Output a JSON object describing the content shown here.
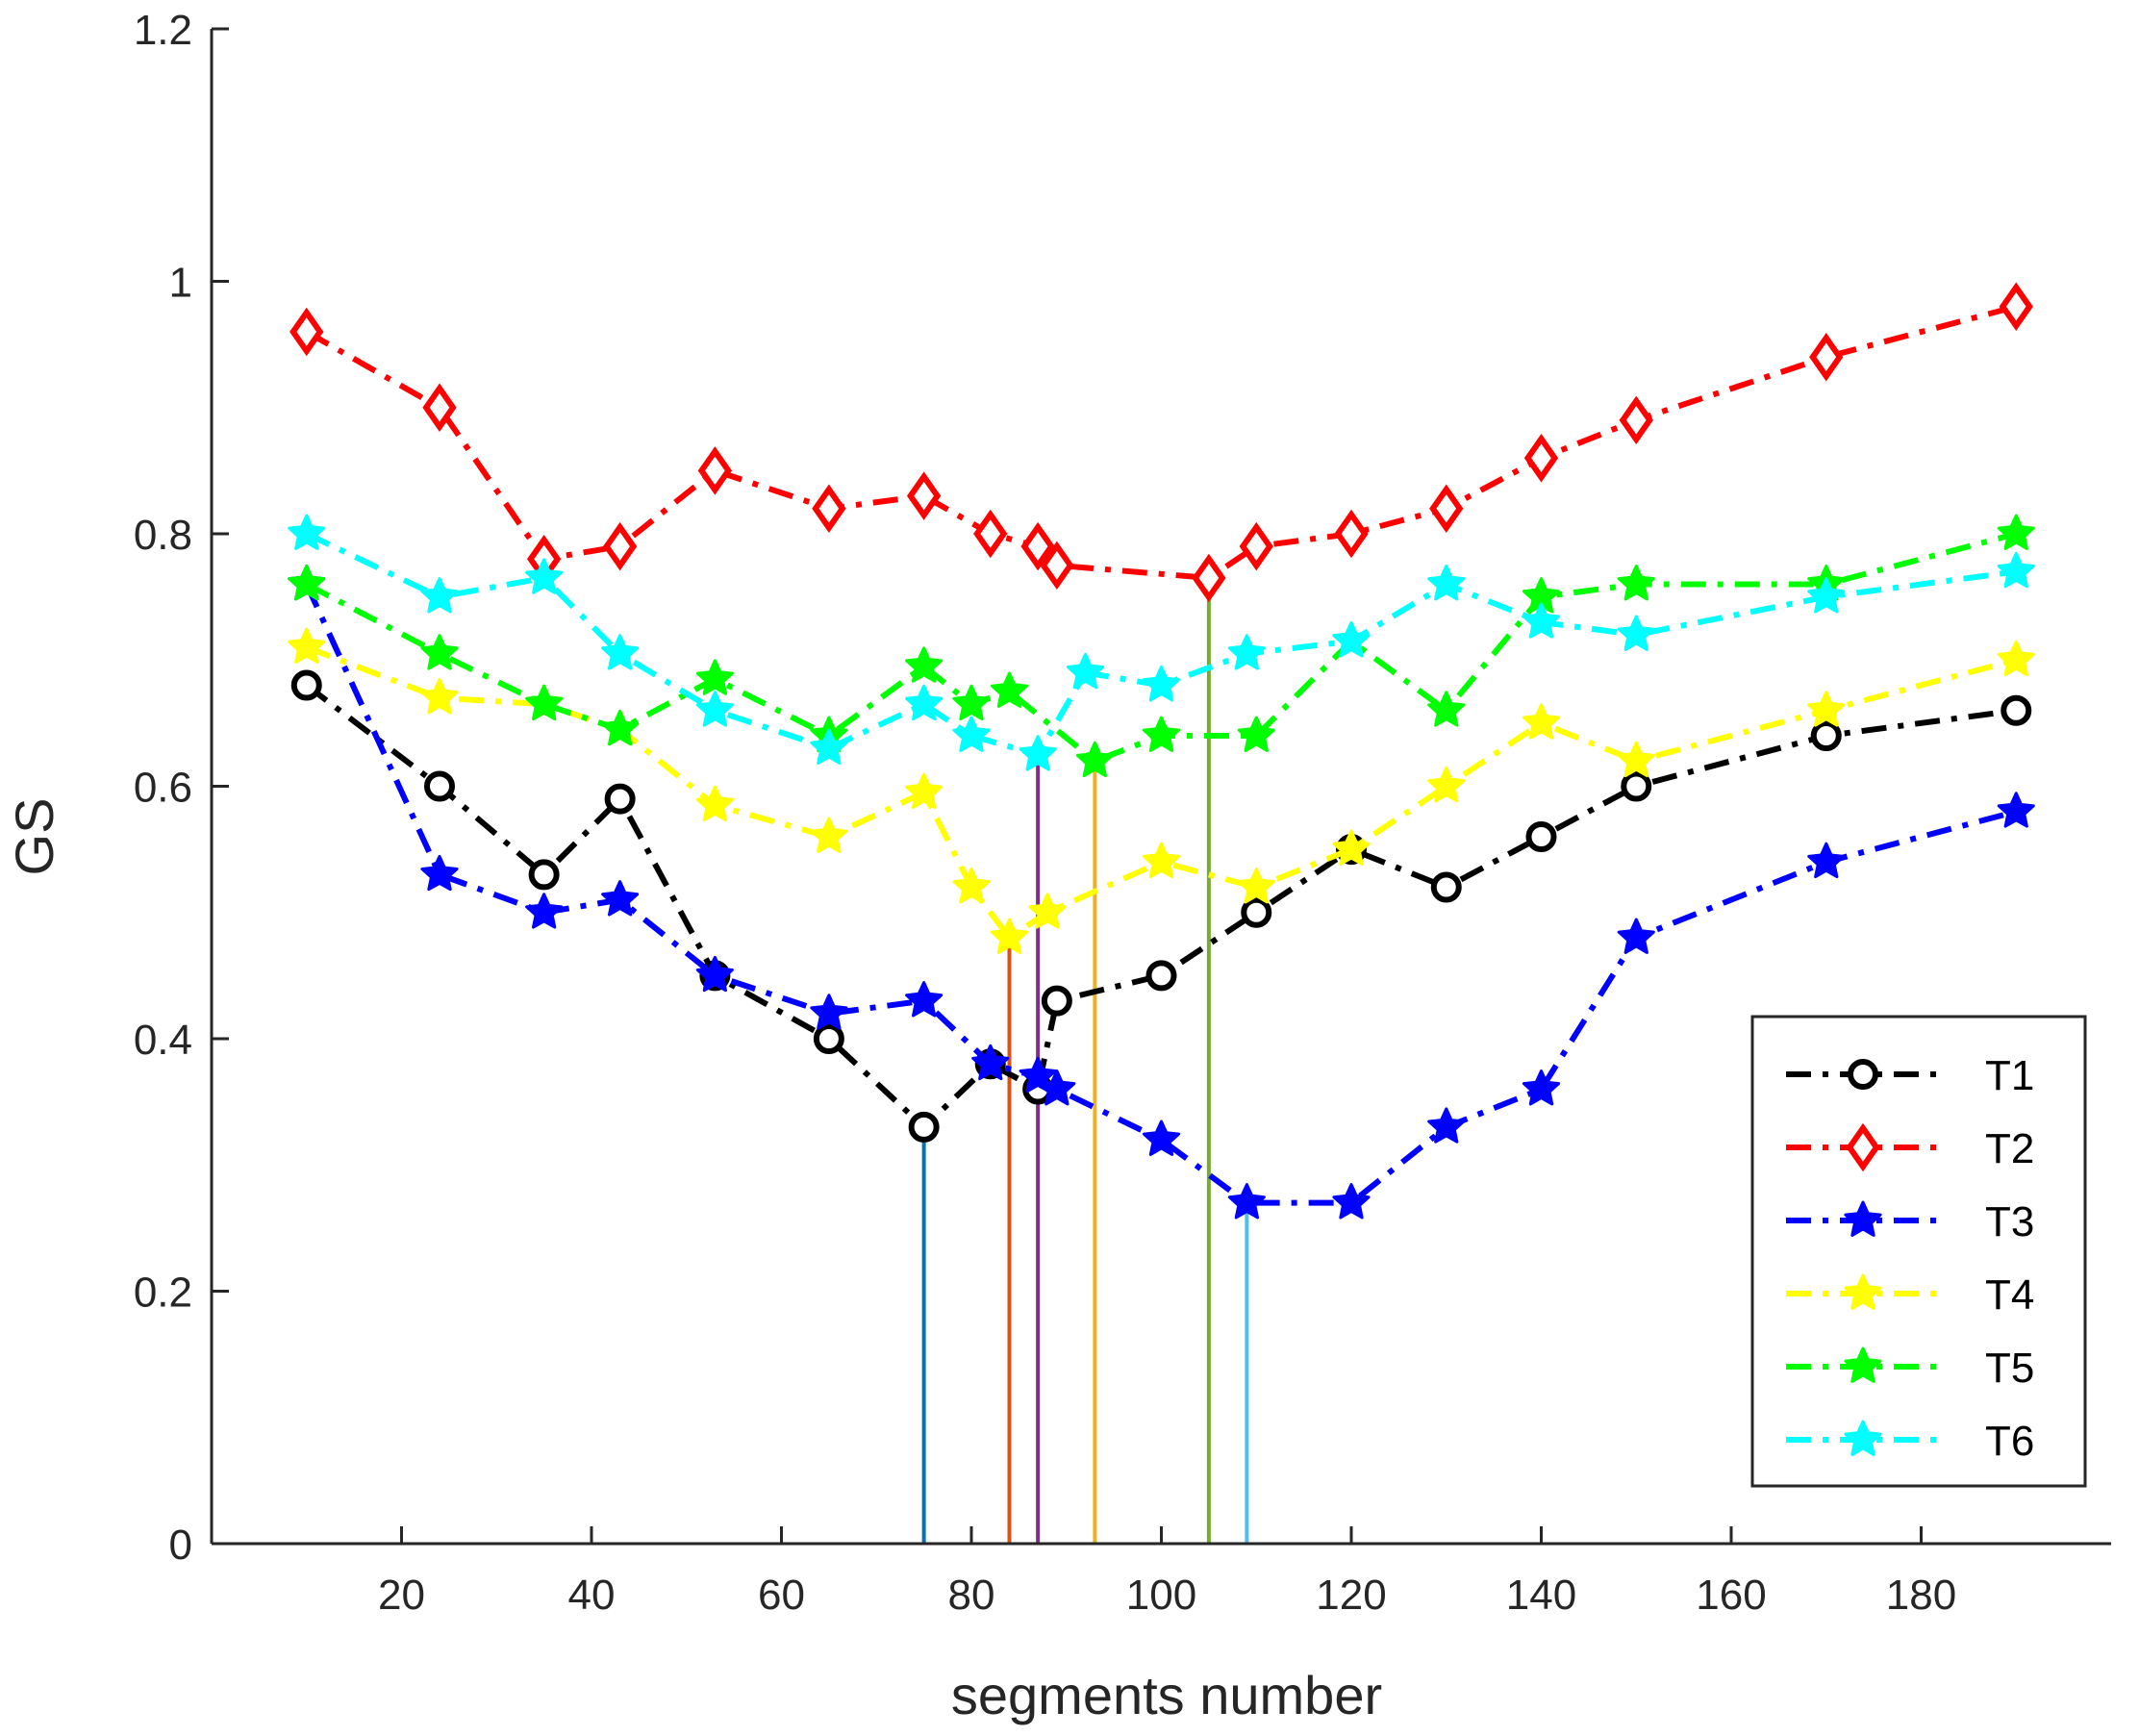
{
  "chart_data": {
    "type": "line",
    "title": "",
    "xlabel": "segments number",
    "ylabel": "GS",
    "xlim": [
      0,
      200
    ],
    "ylim": [
      0,
      1.2
    ],
    "xticks": [
      20,
      40,
      60,
      80,
      100,
      120,
      140,
      160,
      180
    ],
    "yticks": [
      0,
      0.2,
      0.4,
      0.6,
      0.8,
      1,
      1.2
    ],
    "xtick_labels": [
      "20",
      "40",
      "60",
      "80",
      "100",
      "120",
      "140",
      "160",
      "180"
    ],
    "ytick_labels": [
      "0",
      "0.2",
      "0.4",
      "0.6",
      "0.8",
      "1",
      "1.2"
    ],
    "grid": false,
    "legend_position": "bottom-right",
    "series": [
      {
        "name": "T1",
        "color": "#000000",
        "marker": "circle",
        "x": [
          10,
          24,
          35,
          43,
          53,
          65,
          75,
          82,
          87,
          89,
          100,
          110,
          120,
          130,
          140,
          150,
          170,
          190
        ],
        "y": [
          0.68,
          0.6,
          0.53,
          0.59,
          0.45,
          0.4,
          0.33,
          0.38,
          0.36,
          0.43,
          0.45,
          0.5,
          0.55,
          0.52,
          0.56,
          0.6,
          0.64,
          0.66
        ]
      },
      {
        "name": "T2",
        "color": "#ff0000",
        "marker": "diamond",
        "x": [
          10,
          24,
          35,
          43,
          53,
          65,
          75,
          82,
          87,
          89,
          105,
          110,
          120,
          130,
          140,
          150,
          170,
          190
        ],
        "y": [
          0.96,
          0.9,
          0.78,
          0.79,
          0.85,
          0.82,
          0.83,
          0.8,
          0.79,
          0.775,
          0.765,
          0.79,
          0.8,
          0.82,
          0.86,
          0.89,
          0.94,
          0.98
        ]
      },
      {
        "name": "T3",
        "color": "#0000ff",
        "marker": "star",
        "x": [
          10,
          24,
          35,
          43,
          53,
          65,
          75,
          82,
          87,
          89,
          100,
          109,
          120,
          130,
          140,
          150,
          170,
          190
        ],
        "y": [
          0.76,
          0.53,
          0.5,
          0.51,
          0.45,
          0.42,
          0.43,
          0.38,
          0.37,
          0.36,
          0.32,
          0.27,
          0.27,
          0.33,
          0.36,
          0.48,
          0.54,
          0.58
        ]
      },
      {
        "name": "T4",
        "color": "#ffff00",
        "marker": "star",
        "x": [
          10,
          24,
          35,
          43,
          53,
          65,
          75,
          80,
          84,
          88,
          100,
          110,
          120,
          130,
          140,
          150,
          170,
          190
        ],
        "y": [
          0.71,
          0.67,
          0.665,
          0.645,
          0.585,
          0.56,
          0.595,
          0.52,
          0.48,
          0.5,
          0.54,
          0.52,
          0.55,
          0.6,
          0.65,
          0.62,
          0.66,
          0.7
        ]
      },
      {
        "name": "T5",
        "color": "#00ff00",
        "marker": "star",
        "x": [
          10,
          24,
          35,
          43,
          53,
          65,
          75,
          80,
          84,
          93,
          100,
          110,
          120,
          130,
          140,
          150,
          170,
          190
        ],
        "y": [
          0.76,
          0.705,
          0.665,
          0.645,
          0.685,
          0.64,
          0.695,
          0.665,
          0.675,
          0.62,
          0.64,
          0.64,
          0.715,
          0.66,
          0.75,
          0.76,
          0.76,
          0.8
        ]
      },
      {
        "name": "T6",
        "color": "#00ffff",
        "marker": "star",
        "x": [
          10,
          24,
          35,
          43,
          53,
          65,
          75,
          80,
          87,
          92,
          100,
          109,
          120,
          130,
          140,
          150,
          170,
          190
        ],
        "y": [
          0.8,
          0.75,
          0.765,
          0.705,
          0.66,
          0.63,
          0.665,
          0.64,
          0.625,
          0.69,
          0.68,
          0.705,
          0.715,
          0.76,
          0.73,
          0.72,
          0.75,
          0.77
        ]
      }
    ],
    "reference_lines": [
      {
        "x": 75,
        "y": 0.33,
        "color": "#0072bd"
      },
      {
        "x": 84,
        "y": 0.48,
        "color": "#d95319"
      },
      {
        "x": 87,
        "y": 0.625,
        "color": "#7e2f8e"
      },
      {
        "x": 93,
        "y": 0.62,
        "color": "#edb120"
      },
      {
        "x": 105,
        "y": 0.765,
        "color": "#77ac30"
      },
      {
        "x": 109,
        "y": 0.27,
        "color": "#4dbeee"
      }
    ]
  }
}
